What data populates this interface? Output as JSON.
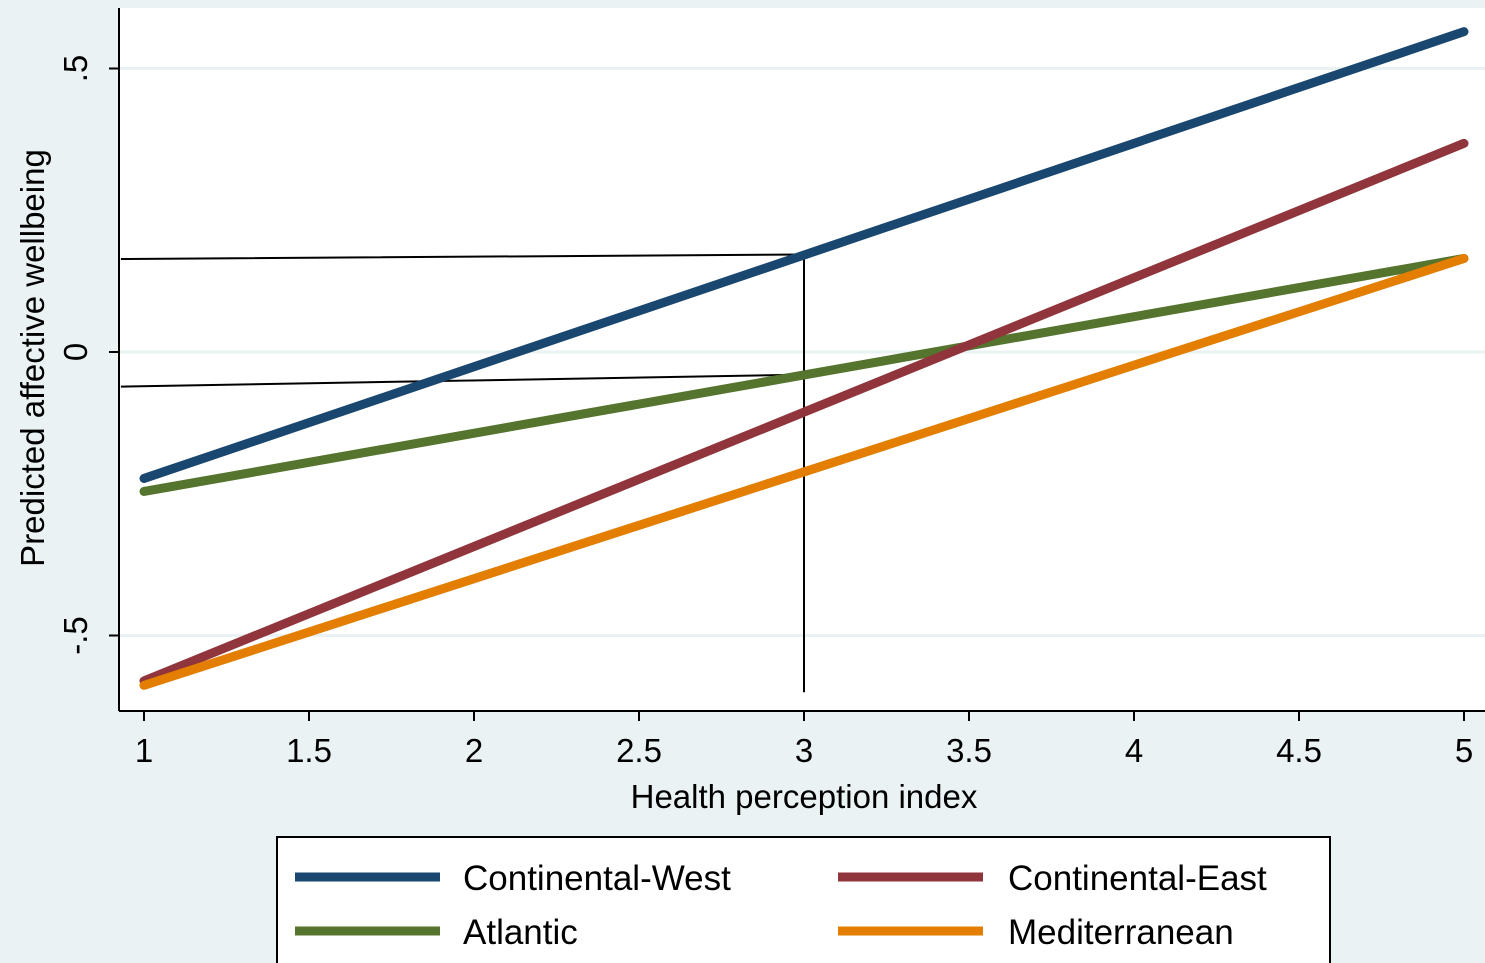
{
  "chart_data": {
    "type": "line",
    "title": "",
    "xlabel": "Health perception index",
    "ylabel": "Predicted affective wellbeing",
    "xlim": [
      1,
      5
    ],
    "ylim": [
      -0.6,
      0.6
    ],
    "x_ticks": [
      {
        "value": 1,
        "label": "1"
      },
      {
        "value": 1.5,
        "label": "1.5"
      },
      {
        "value": 2,
        "label": "2"
      },
      {
        "value": 2.5,
        "label": "2.5"
      },
      {
        "value": 3,
        "label": "3"
      },
      {
        "value": 3.5,
        "label": "3.5"
      },
      {
        "value": 4,
        "label": "4"
      },
      {
        "value": 4.5,
        "label": "4.5"
      },
      {
        "value": 5,
        "label": "5"
      }
    ],
    "y_ticks": [
      {
        "value": -0.5,
        "label": "-.5"
      },
      {
        "value": 0,
        "label": "0"
      },
      {
        "value": 0.5,
        "label": ".5"
      }
    ],
    "grid": "horizontal",
    "legend_position": "bottom",
    "series": [
      {
        "name": "Continental-West",
        "color": "#1a476f",
        "x": [
          1,
          5
        ],
        "y": [
          -0.223,
          0.565
        ]
      },
      {
        "name": "Continental-East",
        "color": "#90353b",
        "x": [
          1,
          5
        ],
        "y": [
          -0.58,
          0.368
        ]
      },
      {
        "name": "Atlantic",
        "color": "#55752f",
        "x": [
          1,
          5
        ],
        "y": [
          -0.246,
          0.165
        ]
      },
      {
        "name": "Mediterranean",
        "color": "#e37e00",
        "x": [
          1,
          5
        ],
        "y": [
          -0.588,
          0.165
        ]
      }
    ],
    "reference_lines": [
      {
        "x": [
          0.93,
          3,
          3
        ],
        "y": [
          0.164,
          0.172,
          -0.6
        ]
      },
      {
        "x": [
          0.93,
          3
        ],
        "y": [
          -0.061,
          -0.04
        ]
      }
    ]
  }
}
